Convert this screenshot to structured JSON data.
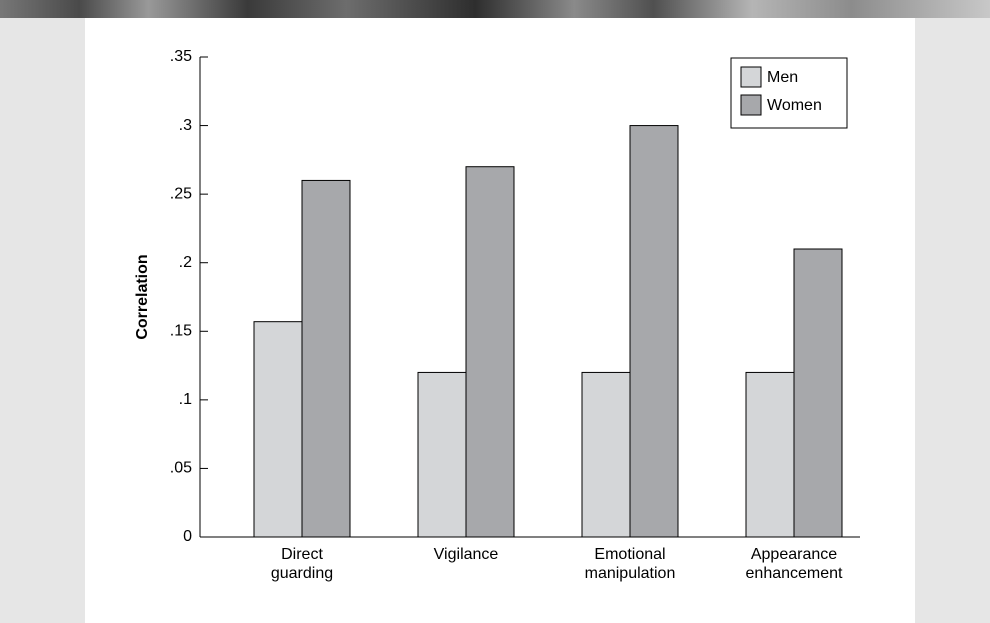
{
  "chart_data": {
    "type": "bar",
    "y_label": "Correlation",
    "categories": [
      "Direct\nguarding",
      "Vigilance",
      "Emotional\nmanipulation",
      "Appearance\nenhancement"
    ],
    "series": [
      {
        "name": "Men",
        "color": "#d4d6d8",
        "values": [
          0.157,
          0.12,
          0.12,
          0.12
        ]
      },
      {
        "name": "Women",
        "color": "#a7a8ab",
        "values": [
          0.26,
          0.27,
          0.3,
          0.21
        ]
      }
    ],
    "ylim": [
      0,
      0.35
    ],
    "yticks": [
      0,
      {
        "value": 0.05,
        "label": ".05"
      },
      {
        "value": 0.1,
        "label": ".1"
      },
      {
        "value": 0.15,
        "label": ".15"
      },
      {
        "value": 0.2,
        "label": ".2"
      },
      {
        "value": 0.25,
        "label": ".25"
      },
      {
        "value": 0.3,
        "label": ".3"
      },
      {
        "value": 0.35,
        "label": ".35"
      }
    ],
    "legend": "upper-right"
  }
}
